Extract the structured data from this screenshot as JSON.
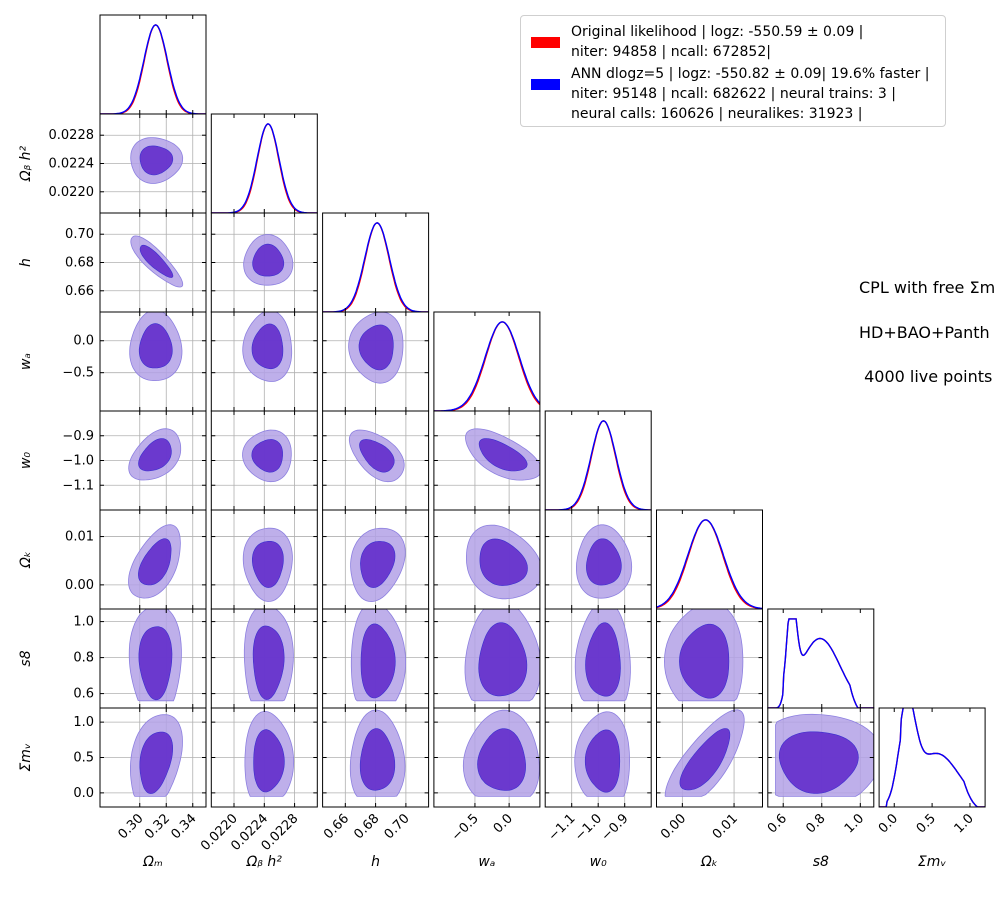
{
  "chart_data": {
    "type": "corner",
    "parameters": [
      {
        "key": "Om",
        "tex": "Ω_m",
        "range": [
          0.27,
          0.35
        ],
        "ticks": [
          0.3,
          0.32,
          0.34
        ],
        "tick_labels": [
          "0.30",
          "0.32",
          "0.34"
        ],
        "mean": 0.312,
        "sigma": 0.0085
      },
      {
        "key": "Obh2",
        "tex": "Ω_b h^2",
        "range": [
          0.0217,
          0.0231
        ],
        "ticks": [
          0.022,
          0.0224,
          0.0228
        ],
        "tick_labels": [
          "0.0220",
          "0.0224",
          "0.0228"
        ],
        "mean": 0.02245,
        "sigma": 0.00014
      },
      {
        "key": "h",
        "tex": "h",
        "range": [
          0.645,
          0.715
        ],
        "ticks": [
          0.66,
          0.68,
          0.7
        ],
        "tick_labels": [
          "0.66",
          "0.68",
          "0.70"
        ],
        "mean": 0.681,
        "sigma": 0.0078
      },
      {
        "key": "wa",
        "tex": "w_a",
        "range": [
          -1.1,
          0.45
        ],
        "ticks": [
          -0.5,
          0.0
        ],
        "tick_labels": [
          "−0.5",
          "0.0"
        ],
        "mean": -0.1,
        "sigma": 0.24
      },
      {
        "key": "w0",
        "tex": "w_0",
        "range": [
          -1.2,
          -0.8
        ],
        "ticks": [
          -1.1,
          -1.0,
          -0.9
        ],
        "tick_labels": [
          "−1.1",
          "−1.0",
          "−0.9"
        ],
        "mean": -0.98,
        "sigma": 0.045
      },
      {
        "key": "Ok",
        "tex": "Ω_k",
        "range": [
          -0.005,
          0.0155
        ],
        "ticks": [
          0.0,
          0.01
        ],
        "tick_labels": [
          "0.00",
          "0.01"
        ],
        "mean": 0.0045,
        "sigma": 0.0033
      },
      {
        "key": "s8",
        "tex": "s8",
        "range": [
          0.52,
          1.07
        ],
        "ticks": [
          0.6,
          0.8,
          1.0
        ],
        "tick_labels": [
          "0.6",
          "0.8",
          "1.0"
        ]
      },
      {
        "key": "mnu",
        "tex": "Σm_ν",
        "range": [
          -0.2,
          1.2
        ],
        "ticks": [
          0.0,
          0.5,
          1.0
        ],
        "tick_labels": [
          "0.0",
          "0.5",
          "1.0"
        ]
      }
    ],
    "diagonal_y_labels": [],
    "series": [
      {
        "name": "Original likelihood | logz: -550.59 ± 0.09 |\nniter: 94858 | ncall: 672852|",
        "color": "#ff0000"
      },
      {
        "name": "ANN dlogz=5 | logz: -550.82 ± 0.09| 19.6% faster |\nniter: 95148 | ncall: 682622 | neural trains: 3 |\nneural calls: 160626 | neuralikes: 31923 |",
        "color": "#0000ff"
      }
    ],
    "contour_colors": {
      "inner": "#6633cc",
      "outer": "#b3a1e6"
    },
    "grid": true,
    "legend_placement": "top-right"
  },
  "annotations": [
    "CPL with free Σm",
    "HD+BAO+Panth",
    " 4000 live points"
  ]
}
